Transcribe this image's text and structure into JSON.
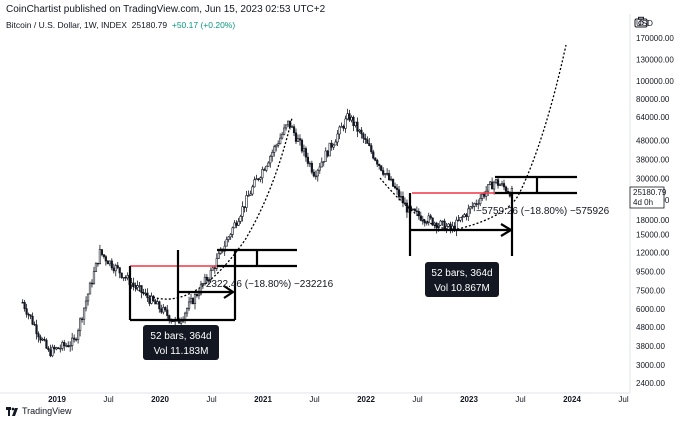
{
  "header": {
    "published": "CoinChartist published on TradingView.com, Jun 15, 2023 02:53 UTC+2",
    "symbol": "Bitcoin / U.S. Dollar, 1W, INDEX",
    "price": "25180.79",
    "change": "+50.17 (+0.20%)"
  },
  "yaxis": {
    "currency": "USD",
    "ticks": [
      "170000.00",
      "130000.00",
      "100000.00",
      "80000.00",
      "64000.00",
      "48000.00",
      "38000.00",
      "30000.00",
      "23000.00",
      "18000.00",
      "15000.00",
      "12000.00",
      "9500.00",
      "7500.00",
      "6000.00",
      "4800.00",
      "3800.00",
      "3000.00",
      "2400.00"
    ],
    "current_price_tag": "25180.79",
    "current_time_tag": "4d 0h"
  },
  "xaxis": {
    "ticks": [
      "2019",
      "Jul",
      "2020",
      "Jul",
      "2021",
      "Jul",
      "2022",
      "Jul",
      "2023",
      "Jul",
      "2024",
      "Jul"
    ]
  },
  "annotations": {
    "left_measure": "−2322.46 (−18.80%) −232216",
    "left_badge_line1": "52 bars, 364d",
    "left_badge_line2": "Vol 11.183M",
    "right_measure": "−5759.26 (−18.80%) −575926",
    "right_badge_line1": "52 bars, 364d",
    "right_badge_line2": "Vol 10.867M"
  },
  "footer": {
    "brand": "TradingView"
  },
  "colors": {
    "resistance": "#f23645",
    "candle": "#131722",
    "background": "#ffffff"
  },
  "chart_data": {
    "type": "candlestick",
    "scale": "log",
    "timeframe": "1W",
    "ylim": [
      2400,
      220000
    ],
    "keypoints": [
      {
        "x": "2018-09",
        "y": 6500
      },
      {
        "x": "2018-12",
        "y": 3500
      },
      {
        "x": "2019-03",
        "y": 4000
      },
      {
        "x": "2019-06",
        "y": 12000
      },
      {
        "x": "2019-10",
        "y": 8000
      },
      {
        "x": "2020-03",
        "y": 5000
      },
      {
        "x": "2020-07",
        "y": 9500
      },
      {
        "x": "2020-12",
        "y": 28000
      },
      {
        "x": "2021-04",
        "y": 60000
      },
      {
        "x": "2021-07",
        "y": 32000
      },
      {
        "x": "2021-11",
        "y": 65000
      },
      {
        "x": "2022-06",
        "y": 20000
      },
      {
        "x": "2022-11",
        "y": 16000
      },
      {
        "x": "2023-04",
        "y": 29000
      },
      {
        "x": "2023-06",
        "y": 25180.79
      }
    ],
    "resistance_levels": [
      10000,
      24500
    ]
  }
}
